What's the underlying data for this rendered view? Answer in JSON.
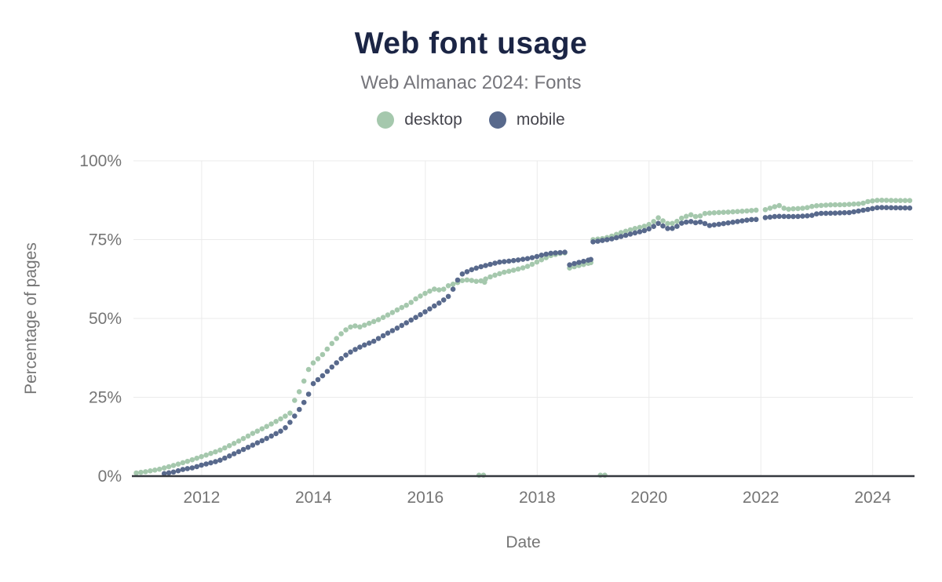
{
  "header": {
    "title": "Web font usage",
    "subtitle": "Web Almanac 2024: Fonts"
  },
  "legend": [
    {
      "label": "desktop",
      "color": "#a5c8ad"
    },
    {
      "label": "mobile",
      "color": "#58698c"
    }
  ],
  "chart_data": {
    "type": "scatter",
    "title": "Web font usage",
    "subtitle": "Web Almanac 2024: Fonts",
    "xlabel": "Date",
    "ylabel": "Percentage of pages",
    "xlim": [
      2010.78,
      2024.72
    ],
    "ylim": [
      0,
      100
    ],
    "grid": true,
    "legend_position": "top",
    "x_ticks": [
      {
        "value": 2012,
        "label": "2012"
      },
      {
        "value": 2014,
        "label": "2014"
      },
      {
        "value": 2016,
        "label": "2016"
      },
      {
        "value": 2018,
        "label": "2018"
      },
      {
        "value": 2020,
        "label": "2020"
      },
      {
        "value": 2022,
        "label": "2022"
      },
      {
        "value": 2024,
        "label": "2024"
      }
    ],
    "y_ticks": [
      {
        "value": 0,
        "label": "0%"
      },
      {
        "value": 25,
        "label": "25%"
      },
      {
        "value": 50,
        "label": "50%"
      },
      {
        "value": 75,
        "label": "75%"
      },
      {
        "value": 100,
        "label": "100%"
      }
    ],
    "point_interval_years": 0.0833,
    "series": [
      {
        "name": "desktop",
        "color": "#a5c8ad",
        "segments": [
          [
            [
              2010.83,
              1.0
            ],
            [
              2011.0,
              1.4
            ],
            [
              2011.25,
              2.2
            ],
            [
              2011.5,
              3.4
            ],
            [
              2011.75,
              4.7
            ],
            [
              2012.0,
              6.2
            ],
            [
              2012.3,
              8.0
            ],
            [
              2012.63,
              10.8
            ],
            [
              2012.91,
              13.5
            ],
            [
              2013.19,
              16.0
            ],
            [
              2013.47,
              18.7
            ],
            [
              2013.58,
              20.0
            ],
            [
              2013.63,
              22.8
            ],
            [
              2013.7,
              25.5
            ],
            [
              2013.79,
              28.0
            ],
            [
              2013.88,
              33.0
            ],
            [
              2014.0,
              36.0
            ],
            [
              2014.15,
              38.3
            ],
            [
              2014.34,
              42.3
            ],
            [
              2014.53,
              45.8
            ],
            [
              2014.63,
              47.0
            ],
            [
              2014.72,
              47.8
            ],
            [
              2014.81,
              47.2
            ],
            [
              2014.9,
              47.8
            ],
            [
              2015.0,
              48.5
            ],
            [
              2015.19,
              49.8
            ],
            [
              2015.37,
              51.5
            ],
            [
              2015.56,
              53.3
            ],
            [
              2015.7,
              54.5
            ],
            [
              2015.85,
              56.5
            ],
            [
              2016.03,
              58.3
            ],
            [
              2016.2,
              59.6
            ],
            [
              2016.28,
              58.6
            ],
            [
              2016.4,
              60.3
            ],
            [
              2016.55,
              61.2
            ],
            [
              2016.7,
              62.3
            ],
            [
              2016.85,
              62.0
            ],
            [
              2016.95,
              61.6
            ],
            [
              2017.05,
              62.3
            ],
            [
              2017.2,
              63.5
            ],
            [
              2017.4,
              64.6
            ],
            [
              2017.6,
              65.4
            ],
            [
              2017.8,
              66.3
            ],
            [
              2017.95,
              67.5
            ],
            [
              2018.1,
              68.8
            ],
            [
              2018.25,
              70.0
            ],
            [
              2018.4,
              70.6
            ],
            [
              2018.5,
              70.8
            ]
          ],
          [
            [
              2018.58,
              66.0
            ],
            [
              2018.7,
              66.6
            ],
            [
              2018.85,
              67.2
            ],
            [
              2018.96,
              67.7
            ]
          ],
          [
            [
              2019.0,
              75.0
            ],
            [
              2019.2,
              75.4
            ],
            [
              2019.35,
              76.2
            ],
            [
              2019.48,
              77.1
            ],
            [
              2019.72,
              78.4
            ],
            [
              2019.95,
              79.4
            ],
            [
              2020.05,
              80.2
            ],
            [
              2020.16,
              82.0
            ],
            [
              2020.28,
              80.6
            ],
            [
              2020.37,
              79.8
            ],
            [
              2020.5,
              80.8
            ],
            [
              2020.6,
              82.0
            ],
            [
              2020.77,
              83.0
            ],
            [
              2020.86,
              82.0
            ],
            [
              2021.0,
              83.3
            ],
            [
              2021.25,
              83.6
            ],
            [
              2021.5,
              83.8
            ],
            [
              2021.75,
              84.1
            ],
            [
              2021.95,
              84.4
            ]
          ],
          [
            [
              2022.08,
              84.5
            ],
            [
              2022.2,
              85.2
            ],
            [
              2022.33,
              85.8
            ],
            [
              2022.45,
              84.6
            ],
            [
              2022.6,
              84.8
            ],
            [
              2022.8,
              85.0
            ],
            [
              2022.95,
              85.7
            ],
            [
              2023.2,
              86.0
            ],
            [
              2023.5,
              86.1
            ],
            [
              2023.8,
              86.4
            ],
            [
              2023.92,
              87.1
            ],
            [
              2024.1,
              87.5
            ],
            [
              2024.4,
              87.4
            ],
            [
              2024.7,
              87.4
            ]
          ]
        ],
        "outliers": [
          [
            2016.96,
            0.3
          ],
          [
            2017.04,
            0.3
          ],
          [
            2017.06,
            61.5
          ],
          [
            2019.13,
            0.3
          ],
          [
            2019.21,
            0.3
          ]
        ]
      },
      {
        "name": "mobile",
        "color": "#58698c",
        "segments": [
          [
            [
              2011.33,
              0.8
            ],
            [
              2011.5,
              1.3
            ],
            [
              2011.68,
              2.2
            ],
            [
              2011.86,
              2.7
            ],
            [
              2012.0,
              3.5
            ],
            [
              2012.3,
              4.8
            ],
            [
              2012.63,
              7.5
            ],
            [
              2012.91,
              9.8
            ],
            [
              2013.19,
              12.2
            ],
            [
              2013.47,
              14.8
            ],
            [
              2013.6,
              17.5
            ],
            [
              2013.7,
              20.0
            ],
            [
              2013.8,
              22.5
            ],
            [
              2013.9,
              25.5
            ],
            [
              2014.0,
              29.5
            ],
            [
              2014.15,
              31.6
            ],
            [
              2014.34,
              34.8
            ],
            [
              2014.53,
              37.8
            ],
            [
              2014.7,
              39.8
            ],
            [
              2014.9,
              41.5
            ],
            [
              2015.08,
              42.8
            ],
            [
              2015.27,
              44.8
            ],
            [
              2015.5,
              47.0
            ],
            [
              2015.7,
              49.0
            ],
            [
              2015.94,
              51.5
            ],
            [
              2016.12,
              53.5
            ],
            [
              2016.3,
              55.5
            ],
            [
              2016.45,
              57.5
            ],
            [
              2016.55,
              61.5
            ],
            [
              2016.65,
              64.0
            ],
            [
              2016.8,
              65.3
            ],
            [
              2016.95,
              66.2
            ],
            [
              2017.1,
              66.9
            ],
            [
              2017.3,
              67.8
            ],
            [
              2017.55,
              68.3
            ],
            [
              2017.8,
              68.9
            ],
            [
              2017.95,
              69.4
            ],
            [
              2018.1,
              70.2
            ],
            [
              2018.25,
              70.7
            ],
            [
              2018.5,
              71.0
            ]
          ],
          [
            [
              2018.58,
              67.0
            ],
            [
              2018.7,
              67.6
            ],
            [
              2018.85,
              68.2
            ],
            [
              2018.96,
              68.7
            ]
          ],
          [
            [
              2019.0,
              74.3
            ],
            [
              2019.2,
              74.8
            ],
            [
              2019.35,
              75.3
            ],
            [
              2019.48,
              75.9
            ],
            [
              2019.72,
              77.0
            ],
            [
              2019.95,
              78.0
            ],
            [
              2020.05,
              78.8
            ],
            [
              2020.17,
              80.2
            ],
            [
              2020.28,
              79.0
            ],
            [
              2020.37,
              78.2
            ],
            [
              2020.5,
              79.2
            ],
            [
              2020.6,
              80.4
            ],
            [
              2020.77,
              80.8
            ],
            [
              2020.86,
              80.2
            ],
            [
              2020.95,
              80.8
            ],
            [
              2021.05,
              79.4
            ],
            [
              2021.3,
              80.0
            ],
            [
              2021.6,
              80.8
            ],
            [
              2021.85,
              81.4
            ],
            [
              2021.95,
              81.4
            ]
          ],
          [
            [
              2022.08,
              82.0
            ],
            [
              2022.3,
              82.4
            ],
            [
              2022.6,
              82.3
            ],
            [
              2022.9,
              82.6
            ],
            [
              2023.02,
              83.3
            ],
            [
              2023.3,
              83.4
            ],
            [
              2023.6,
              83.6
            ],
            [
              2023.92,
              84.6
            ],
            [
              2024.1,
              85.2
            ],
            [
              2024.4,
              85.1
            ],
            [
              2024.7,
              85.0
            ]
          ]
        ],
        "outliers": []
      }
    ]
  }
}
